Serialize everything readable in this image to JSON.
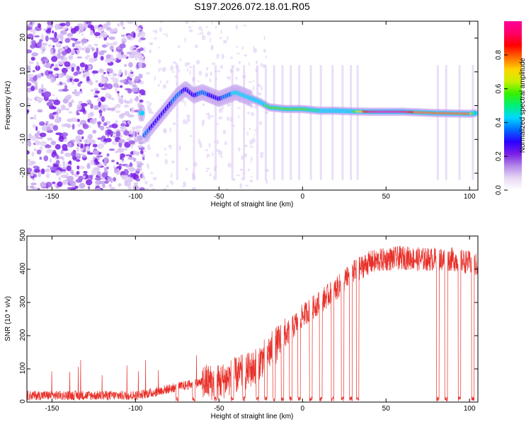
{
  "title": "S197.2026.072.18.01.R05",
  "chart_data": [
    {
      "type": "heatmap",
      "xlabel": "Height of straight line (km)",
      "ylabel": "Frequency (Hz)",
      "xlim": [
        -165,
        105
      ],
      "ylim": [
        -25,
        25
      ],
      "xticks": [
        -150,
        -100,
        -50,
        0,
        50,
        100
      ],
      "yticks": [
        -20,
        -10,
        0,
        10,
        20
      ],
      "colorbar": {
        "label": "Normalized spectral amplitude",
        "range": [
          0.0,
          1.0
        ],
        "ticks": [
          0.0,
          0.2,
          0.4,
          0.6,
          0.8
        ],
        "tick_labels": [
          "0.0",
          "0.2",
          "0.4",
          "0.6",
          "0.8"
        ]
      },
      "ridge": {
        "x": [
          -95,
          -90,
          -85,
          -80,
          -75,
          -70,
          -65,
          -60,
          -55,
          -50,
          -45,
          -40,
          -35,
          -30,
          -25,
          -20,
          -10,
          0,
          10,
          20,
          30,
          40,
          50,
          60,
          70,
          80,
          90,
          100,
          104
        ],
        "freq": [
          -9,
          -6,
          -3,
          0,
          3,
          5,
          3,
          4,
          3,
          2,
          3,
          4,
          3,
          2,
          1,
          -0.5,
          -1,
          -1,
          -1.5,
          -1.5,
          -1.7,
          -1.8,
          -1.8,
          -1.8,
          -2,
          -2.2,
          -2.3,
          -2.4,
          -2.2
        ],
        "amplitude": [
          0.35,
          0.3,
          0.28,
          0.3,
          0.35,
          0.3,
          0.3,
          0.35,
          0.3,
          0.3,
          0.35,
          0.45,
          0.45,
          0.45,
          0.45,
          0.6,
          0.6,
          0.55,
          0.5,
          0.45,
          0.5,
          0.95,
          1.0,
          0.95,
          0.75,
          0.8,
          0.8,
          0.75,
          0.4
        ]
      }
    },
    {
      "type": "line",
      "xlabel": "Height of straight line (km)",
      "ylabel": "SNR (10 * v/v)",
      "xlim": [
        -165,
        105
      ],
      "ylim": [
        0,
        500
      ],
      "xticks": [
        -150,
        -100,
        -50,
        0,
        50,
        100
      ],
      "yticks": [
        0,
        100,
        200,
        300,
        400,
        500
      ],
      "color": "#e8302a",
      "envelope_x": [
        -165,
        -100,
        -90,
        -80,
        -70,
        -60,
        -50,
        -40,
        -30,
        -20,
        -10,
        0,
        10,
        20,
        30,
        40,
        50,
        60,
        70,
        80,
        90,
        100,
        105
      ],
      "envelope_y": [
        20,
        20,
        28,
        40,
        50,
        60,
        60,
        80,
        100,
        150,
        200,
        260,
        300,
        340,
        390,
        420,
        430,
        435,
        430,
        430,
        430,
        420,
        410
      ],
      "dropouts_x": [
        -75,
        -65,
        -52,
        -42,
        -35,
        -27,
        -22,
        -17,
        -12,
        -7,
        -2,
        5,
        11,
        18,
        24,
        29,
        33,
        81,
        86,
        94,
        102
      ]
    }
  ],
  "colors": {
    "colormap": [
      "#ffffff",
      "#e8d8f4",
      "#b488e8",
      "#7a1fe6",
      "#2a00ff",
      "#006cff",
      "#00d7ff",
      "#00f07a",
      "#37f000",
      "#c9f000",
      "#ffd400",
      "#ff6a00",
      "#ff0000",
      "#ff0066",
      "#ff0099"
    ],
    "snr_line": "#e8302a"
  }
}
